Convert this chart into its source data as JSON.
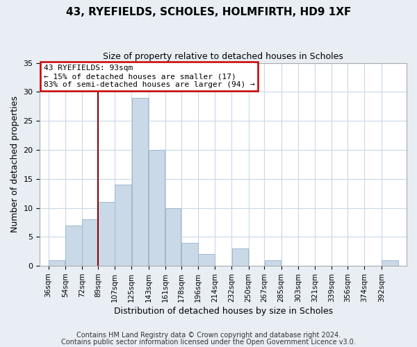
{
  "title": "43, RYEFIELDS, SCHOLES, HOLMFIRTH, HD9 1XF",
  "subtitle": "Size of property relative to detached houses in Scholes",
  "xlabel": "Distribution of detached houses by size in Scholes",
  "ylabel": "Number of detached properties",
  "footer_line1": "Contains HM Land Registry data © Crown copyright and database right 2024.",
  "footer_line2": "Contains public sector information licensed under the Open Government Licence v3.0.",
  "bin_labels": [
    "36sqm",
    "54sqm",
    "72sqm",
    "89sqm",
    "107sqm",
    "125sqm",
    "143sqm",
    "161sqm",
    "178sqm",
    "196sqm",
    "214sqm",
    "232sqm",
    "250sqm",
    "267sqm",
    "285sqm",
    "303sqm",
    "321sqm",
    "339sqm",
    "356sqm",
    "374sqm",
    "392sqm"
  ],
  "bar_heights": [
    1,
    7,
    8,
    11,
    14,
    29,
    20,
    10,
    4,
    2,
    0,
    3,
    0,
    1,
    0,
    0,
    0,
    0,
    0,
    0,
    1
  ],
  "bar_color": "#c9d9e8",
  "bar_edge_color": "#a0b8cc",
  "highlight_color": "#8b0000",
  "annotation_title": "43 RYEFIELDS: 93sqm",
  "annotation_line1": "← 15% of detached houses are smaller (17)",
  "annotation_line2": "83% of semi-detached houses are larger (94) →",
  "annotation_box_color": "#ffffff",
  "annotation_box_edge": "#cc0000",
  "ylim": [
    0,
    35
  ],
  "yticks": [
    0,
    5,
    10,
    15,
    20,
    25,
    30,
    35
  ],
  "bin_edges_sqm": [
    36,
    54,
    72,
    89,
    107,
    125,
    143,
    161,
    178,
    196,
    214,
    232,
    250,
    267,
    285,
    303,
    321,
    339,
    356,
    374,
    392,
    410
  ],
  "background_color": "#e8eef4",
  "plot_background": "#ffffff",
  "grid_color": "#c8d8e8",
  "title_fontsize": 11,
  "subtitle_fontsize": 9,
  "axis_label_fontsize": 9,
  "tick_fontsize": 7.5,
  "annotation_fontsize": 8,
  "footer_fontsize": 7
}
